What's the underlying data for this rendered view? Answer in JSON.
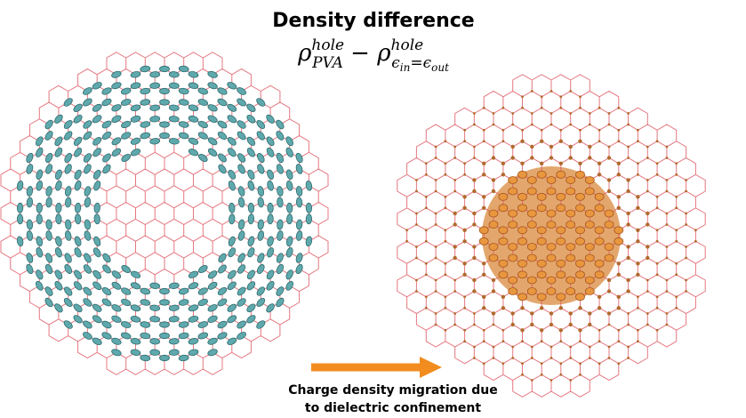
{
  "header": {
    "title": "Density difference",
    "formula": {
      "rho1": "ρ",
      "sup1": "hole",
      "sub1": "PVA",
      "minus": " − ",
      "rho2": "ρ",
      "sup2": "hole",
      "sub2a": "ϵ",
      "sub2b": "in",
      "sub2c": "=ϵ",
      "sub2d": "out"
    }
  },
  "caption": {
    "line1": "Charge density migration due",
    "line2": "to dielectric confinement"
  }
}
